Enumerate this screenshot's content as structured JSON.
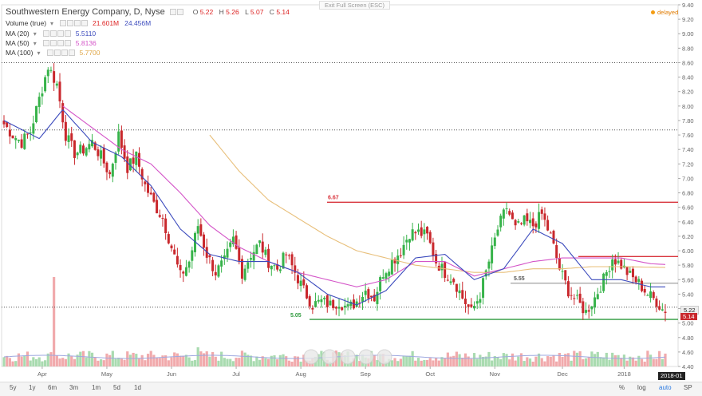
{
  "legend": {
    "title": "Southwestern Energy Company, D, Nyse",
    "ohlc": [
      {
        "k": "O",
        "v": "5.22"
      },
      {
        "k": "H",
        "v": "5.26"
      },
      {
        "k": "L",
        "v": "5.07"
      },
      {
        "k": "C",
        "v": "5.14"
      }
    ],
    "volume_label": "Volume (true)",
    "volume_val1": "21.601M",
    "volume_val2": "24.456M",
    "ma20_label": "MA (20)",
    "ma20_val": "5.5110",
    "ma50_label": "MA (50)",
    "ma50_val": "5.8136",
    "ma100_label": "MA (100)",
    "ma100_val": "5.7700"
  },
  "fullscreen_label": "Exit Full Screen (ESC)",
  "delayed_label": "delayed",
  "current_price_tag": "5.14",
  "prev_price_tag": "5.22",
  "date_tag": "2018-01",
  "range_buttons": [
    "5y",
    "1y",
    "6m",
    "3m",
    "1m",
    "5d",
    "1d"
  ],
  "options": [
    "%",
    "log",
    "auto",
    "SP"
  ],
  "colors": {
    "up": "#37b34a",
    "down": "#c9282d",
    "ma20": "#3c4bbd",
    "ma50": "#d455c8",
    "ma100": "#e8bf7a",
    "hline_red": "#d9363e",
    "hline_green": "#2f9a3e",
    "accent": "#2a7ae2"
  },
  "chart_data": {
    "type": "candlestick",
    "ylim": [
      4.4,
      9.4
    ],
    "y_ticks": [
      "4.40",
      "4.60",
      "4.80",
      "5.00",
      "5.20",
      "5.40",
      "5.60",
      "5.80",
      "6.00",
      "6.20",
      "6.40",
      "6.60",
      "6.80",
      "7.00",
      "7.20",
      "7.40",
      "7.60",
      "7.80",
      "8.00",
      "8.20",
      "8.40",
      "8.60",
      "8.80",
      "9.00",
      "9.20",
      "9.40"
    ],
    "x_labels": [
      "Apr",
      "May",
      "Jun",
      "Jul",
      "Aug",
      "Sep",
      "Oct",
      "Nov",
      "Dec",
      "2018"
    ],
    "horizontal_lines": [
      {
        "value": 6.67,
        "label": "6.67",
        "color": "red"
      },
      {
        "value": 5.05,
        "label": "5.05",
        "color": "green"
      },
      {
        "value": 5.55,
        "label": "5.55",
        "color": "gray"
      },
      {
        "value": 5.92,
        "label": "",
        "color": "red"
      },
      {
        "value": 8.6,
        "label": "",
        "color": "dotted"
      },
      {
        "value": 7.67,
        "label": "",
        "color": "dotted"
      },
      {
        "value": 5.22,
        "label": "",
        "color": "dotted"
      }
    ],
    "close_path": [
      [
        0,
        7.75
      ],
      [
        3,
        7.6
      ],
      [
        6,
        7.5
      ],
      [
        9,
        7.65
      ],
      [
        12,
        8.1
      ],
      [
        15,
        8.55
      ],
      [
        18,
        8.3
      ],
      [
        21,
        7.6
      ],
      [
        24,
        7.35
      ],
      [
        27,
        7.4
      ],
      [
        30,
        7.5
      ],
      [
        33,
        7.3
      ],
      [
        36,
        7.05
      ],
      [
        39,
        7.6
      ],
      [
        42,
        7.15
      ],
      [
        45,
        7.3
      ],
      [
        48,
        6.9
      ],
      [
        51,
        6.65
      ],
      [
        54,
        6.45
      ],
      [
        57,
        6.05
      ],
      [
        60,
        5.65
      ],
      [
        63,
        5.85
      ],
      [
        66,
        6.35
      ],
      [
        69,
        5.95
      ],
      [
        72,
        5.7
      ],
      [
        75,
        5.85
      ],
      [
        78,
        6.15
      ],
      [
        81,
        5.7
      ],
      [
        84,
        5.95
      ],
      [
        87,
        6.1
      ],
      [
        90,
        5.85
      ],
      [
        93,
        5.75
      ],
      [
        96,
        5.95
      ],
      [
        99,
        5.7
      ],
      [
        102,
        5.45
      ],
      [
        105,
        5.25
      ],
      [
        108,
        5.3
      ],
      [
        111,
        5.25
      ],
      [
        114,
        5.3
      ],
      [
        117,
        5.2
      ],
      [
        120,
        5.3
      ],
      [
        123,
        5.45
      ],
      [
        126,
        5.35
      ],
      [
        129,
        5.7
      ],
      [
        132,
        5.85
      ],
      [
        135,
        6.0
      ],
      [
        138,
        6.25
      ],
      [
        141,
        6.25
      ],
      [
        144,
        6.2
      ],
      [
        147,
        5.85
      ],
      [
        150,
        5.7
      ],
      [
        153,
        5.6
      ],
      [
        156,
        5.35
      ],
      [
        159,
        5.15
      ],
      [
        162,
        5.4
      ],
      [
        165,
        5.85
      ],
      [
        168,
        6.3
      ],
      [
        171,
        6.6
      ],
      [
        174,
        6.3
      ],
      [
        177,
        6.4
      ],
      [
        180,
        6.35
      ],
      [
        183,
        6.5
      ],
      [
        186,
        6.2
      ],
      [
        189,
        5.75
      ],
      [
        192,
        5.45
      ],
      [
        195,
        5.3
      ],
      [
        198,
        5.15
      ],
      [
        201,
        5.35
      ],
      [
        204,
        5.6
      ],
      [
        207,
        5.9
      ],
      [
        210,
        5.8
      ],
      [
        213,
        5.65
      ],
      [
        216,
        5.55
      ],
      [
        219,
        5.4
      ],
      [
        222,
        5.3
      ],
      [
        225,
        5.14
      ]
    ],
    "ma20": [
      [
        0,
        7.8
      ],
      [
        12,
        7.55
      ],
      [
        20,
        7.95
      ],
      [
        30,
        7.5
      ],
      [
        40,
        7.3
      ],
      [
        50,
        6.9
      ],
      [
        60,
        6.3
      ],
      [
        70,
        5.95
      ],
      [
        80,
        5.85
      ],
      [
        90,
        5.85
      ],
      [
        100,
        5.7
      ],
      [
        110,
        5.4
      ],
      [
        120,
        5.25
      ],
      [
        130,
        5.45
      ],
      [
        140,
        5.9
      ],
      [
        150,
        5.95
      ],
      [
        160,
        5.6
      ],
      [
        170,
        5.75
      ],
      [
        180,
        6.3
      ],
      [
        190,
        6.1
      ],
      [
        200,
        5.6
      ],
      [
        210,
        5.6
      ],
      [
        220,
        5.5
      ],
      [
        225,
        5.5
      ]
    ],
    "ma50": [
      [
        20,
        8.0
      ],
      [
        30,
        7.7
      ],
      [
        40,
        7.4
      ],
      [
        50,
        7.2
      ],
      [
        60,
        6.8
      ],
      [
        70,
        6.35
      ],
      [
        80,
        6.05
      ],
      [
        90,
        5.85
      ],
      [
        100,
        5.7
      ],
      [
        110,
        5.6
      ],
      [
        120,
        5.5
      ],
      [
        130,
        5.6
      ],
      [
        140,
        5.85
      ],
      [
        150,
        5.85
      ],
      [
        160,
        5.65
      ],
      [
        170,
        5.75
      ],
      [
        180,
        5.85
      ],
      [
        190,
        5.9
      ],
      [
        200,
        5.9
      ],
      [
        210,
        5.9
      ],
      [
        220,
        5.82
      ],
      [
        225,
        5.81
      ]
    ],
    "ma100": [
      [
        70,
        7.6
      ],
      [
        80,
        7.1
      ],
      [
        90,
        6.7
      ],
      [
        100,
        6.45
      ],
      [
        110,
        6.2
      ],
      [
        120,
        6.0
      ],
      [
        130,
        5.9
      ],
      [
        140,
        5.8
      ],
      [
        150,
        5.75
      ],
      [
        160,
        5.7
      ],
      [
        170,
        5.7
      ],
      [
        180,
        5.75
      ],
      [
        190,
        5.75
      ],
      [
        200,
        5.78
      ],
      [
        210,
        5.78
      ],
      [
        225,
        5.77
      ]
    ]
  }
}
